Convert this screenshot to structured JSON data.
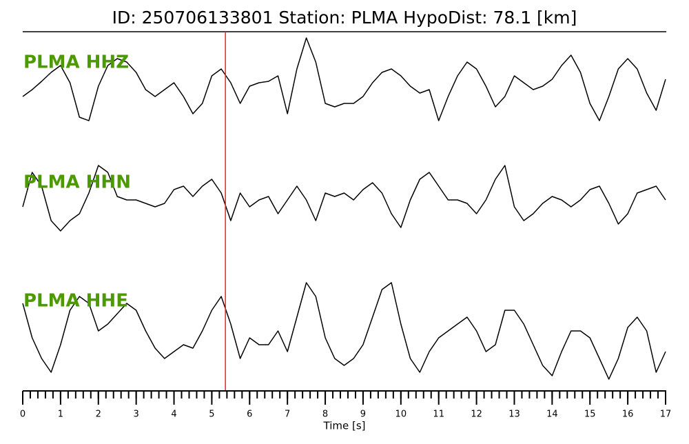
{
  "chart_data": {
    "type": "line",
    "title": "ID: 250706133801   Station: PLMA   HypoDist:    78.1 [km]",
    "xlabel": "Time [s]",
    "xlim": [
      0,
      17
    ],
    "xticks": [
      0,
      1,
      2,
      3,
      4,
      5,
      6,
      7,
      8,
      9,
      10,
      11,
      12,
      13,
      14,
      15,
      16,
      17
    ],
    "xminor_step": 0.2,
    "ylim": [
      -75,
      75
    ],
    "label_color": "#4c9a00",
    "pick": 5.36,
    "pick_color": "#e8261f",
    "x": [
      0,
      0.25,
      0.5,
      0.75,
      1,
      1.25,
      1.5,
      1.75,
      2,
      2.25,
      2.5,
      2.75,
      3,
      3.25,
      3.5,
      3.75,
      4,
      4.25,
      4.5,
      4.75,
      5,
      5.25,
      5.5,
      5.75,
      6,
      6.25,
      6.5,
      6.75,
      7,
      7.25,
      7.5,
      7.75,
      8,
      8.25,
      8.5,
      8.75,
      9,
      9.25,
      9.5,
      9.75,
      10,
      10.25,
      10.5,
      10.75,
      11,
      11.25,
      11.5,
      11.75,
      12,
      12.25,
      12.5,
      12.75,
      13,
      13.25,
      13.5,
      13.75,
      14,
      14.25,
      14.5,
      14.75,
      15,
      15.25,
      15.5,
      15.75,
      16,
      16.25,
      16.5,
      16.75,
      17
    ],
    "series": [
      {
        "name": "PLMA HHZ",
        "color": "#000000",
        "values": [
          -25,
          -15,
          -3,
          10,
          20,
          -5,
          -55,
          -60,
          -10,
          20,
          30,
          25,
          10,
          -15,
          -25,
          -15,
          -5,
          -25,
          -50,
          -35,
          5,
          15,
          -5,
          -35,
          -10,
          -5,
          -3,
          5,
          -50,
          15,
          60,
          25,
          -35,
          -40,
          -35,
          -35,
          -25,
          -5,
          10,
          15,
          5,
          -10,
          -20,
          -15,
          -60,
          -25,
          5,
          25,
          15,
          -10,
          -40,
          -25,
          5,
          -5,
          -15,
          -10,
          0,
          20,
          35,
          10,
          -35,
          -60,
          -25,
          15,
          30,
          15,
          -20,
          -45,
          0
        ]
      },
      {
        "name": "PLMA HHN",
        "color": "#000000",
        "values": [
          -10,
          40,
          20,
          -30,
          -45,
          -30,
          -20,
          10,
          50,
          40,
          5,
          0,
          0,
          -5,
          -10,
          -5,
          15,
          20,
          5,
          20,
          30,
          10,
          -30,
          10,
          -10,
          0,
          5,
          -20,
          0,
          20,
          0,
          -30,
          10,
          5,
          10,
          0,
          15,
          25,
          10,
          -20,
          -40,
          0,
          30,
          40,
          20,
          0,
          0,
          -5,
          -20,
          0,
          30,
          50,
          -10,
          -30,
          -20,
          -5,
          5,
          0,
          -10,
          0,
          15,
          20,
          -5,
          -35,
          -20,
          10,
          15,
          20,
          0
        ]
      },
      {
        "name": "PLMA HHE",
        "color": "#000000",
        "values": [
          40,
          -10,
          -40,
          -60,
          -20,
          30,
          50,
          40,
          0,
          10,
          25,
          40,
          30,
          0,
          -25,
          -40,
          -30,
          -20,
          -25,
          0,
          30,
          50,
          10,
          -40,
          -10,
          -20,
          -20,
          0,
          -30,
          20,
          70,
          50,
          -10,
          -40,
          -50,
          -40,
          -20,
          20,
          60,
          70,
          10,
          -40,
          -60,
          -30,
          -10,
          0,
          10,
          20,
          0,
          -30,
          -20,
          30,
          30,
          10,
          -20,
          -50,
          -65,
          -30,
          0,
          0,
          -10,
          -40,
          -70,
          -40,
          5,
          20,
          0,
          -60,
          -30
        ]
      }
    ]
  }
}
